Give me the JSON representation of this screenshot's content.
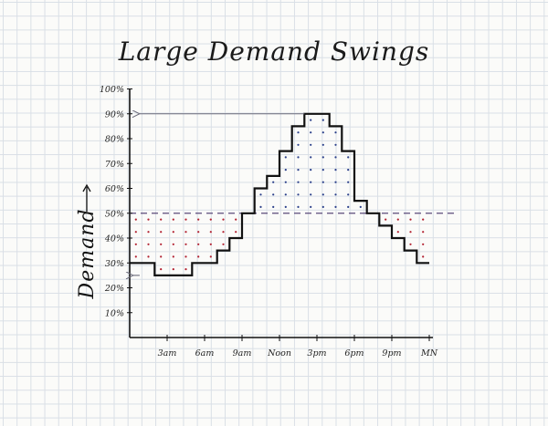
{
  "chart_data": {
    "type": "line",
    "title": "Large Demand Swings",
    "ylabel": "Demand",
    "xlabel": "",
    "ylim": [
      0,
      100
    ],
    "xlim": [
      0,
      24
    ],
    "y_ticks": [
      "10%",
      "20%",
      "30%",
      "40%",
      "50%",
      "60%",
      "70%",
      "80%",
      "90%",
      "100%"
    ],
    "x_ticks": [
      {
        "label": "3am",
        "x": 3
      },
      {
        "label": "6am",
        "x": 6
      },
      {
        "label": "9am",
        "x": 9
      },
      {
        "label": "Noon",
        "x": 12
      },
      {
        "label": "3pm",
        "x": 15
      },
      {
        "label": "6pm",
        "x": 18
      },
      {
        "label": "9pm",
        "x": 21
      },
      {
        "label": "MN",
        "x": 24
      }
    ],
    "baseline": 50,
    "grid": false,
    "series": [
      {
        "values": [
          {
            "x0": 0,
            "x1": 2,
            "y": 30
          },
          {
            "x0": 2,
            "x1": 5,
            "y": 25
          },
          {
            "x0": 5,
            "x1": 7,
            "y": 30
          },
          {
            "x0": 7,
            "x1": 8,
            "y": 35
          },
          {
            "x0": 8,
            "x1": 9,
            "y": 40
          },
          {
            "x0": 9,
            "x1": 10,
            "y": 50
          },
          {
            "x0": 10,
            "x1": 11,
            "y": 60
          },
          {
            "x0": 11,
            "x1": 12,
            "y": 65
          },
          {
            "x0": 12,
            "x1": 13,
            "y": 75
          },
          {
            "x0": 13,
            "x1": 14,
            "y": 85
          },
          {
            "x0": 14,
            "x1": 16,
            "y": 90
          },
          {
            "x0": 16,
            "x1": 17,
            "y": 85
          },
          {
            "x0": 17,
            "x1": 18,
            "y": 75
          },
          {
            "x0": 18,
            "x1": 19,
            "y": 55
          },
          {
            "x0": 19,
            "x1": 20,
            "y": 50
          },
          {
            "x0": 20,
            "x1": 21,
            "y": 45
          },
          {
            "x0": 21,
            "x1": 22,
            "y": 40
          },
          {
            "x0": 22,
            "x1": 23,
            "y": 35
          },
          {
            "x0": 23,
            "x1": 24,
            "y": 30
          }
        ]
      }
    ],
    "annotations": [
      {
        "type": "arrow",
        "from_x": 14,
        "to_x": 0.5,
        "y": 90
      },
      {
        "type": "arrow",
        "from_x": 0.8,
        "to_x": 0,
        "y": 25
      }
    ],
    "colors": {
      "line": "#111111",
      "baseline": "#5a4a7a",
      "dots_below": "#b22030",
      "dots_above": "#2a3f8a",
      "arrow": "#6a6a7a"
    }
  }
}
